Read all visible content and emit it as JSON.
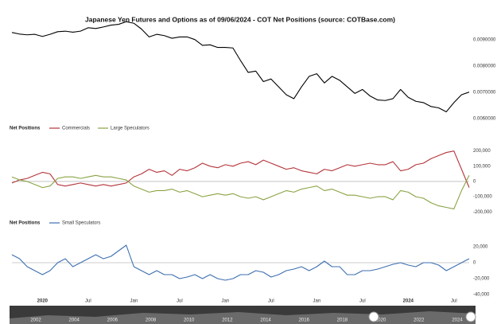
{
  "title": "Japanese Yen Futures and Options as of 09/06/2024 - COT Net Positions (source: COTBase.com)",
  "chart_data": [
    {
      "type": "line",
      "x": [
        "2019-09",
        "2019-10",
        "2019-11",
        "2019-12",
        "2020-01",
        "2020-02",
        "2020-03",
        "2020-04",
        "2020-05",
        "2020-06",
        "2020-07",
        "2020-08",
        "2020-09",
        "2020-10",
        "2020-11",
        "2020-12",
        "2021-01",
        "2021-02",
        "2021-03",
        "2021-04",
        "2021-05",
        "2021-06",
        "2021-07",
        "2021-08",
        "2021-09",
        "2021-10",
        "2021-11",
        "2021-12",
        "2022-01",
        "2022-02",
        "2022-03",
        "2022-04",
        "2022-05",
        "2022-06",
        "2022-07",
        "2022-08",
        "2022-09",
        "2022-10",
        "2022-11",
        "2022-12",
        "2023-01",
        "2023-02",
        "2023-03",
        "2023-04",
        "2023-05",
        "2023-06",
        "2023-07",
        "2023-08",
        "2023-09",
        "2023-10",
        "2023-11",
        "2023-12",
        "2024-01",
        "2024-02",
        "2024-03",
        "2024-04",
        "2024-05",
        "2024-06",
        "2024-07",
        "2024-08",
        "2024-09"
      ],
      "xlim": [
        "2019-09",
        "2024-09"
      ],
      "series": [
        {
          "color": "#000000",
          "values": [
            0.00927,
            0.00921,
            0.00918,
            0.0092,
            0.00912,
            0.0092,
            0.0093,
            0.00932,
            0.00928,
            0.00932,
            0.00945,
            0.00942,
            0.00948,
            0.00955,
            0.00958,
            0.00968,
            0.00962,
            0.0094,
            0.0091,
            0.0092,
            0.00915,
            0.00905,
            0.0091,
            0.0091,
            0.009,
            0.00878,
            0.0088,
            0.0087,
            0.0087,
            0.00868,
            0.0082,
            0.00775,
            0.0078,
            0.0074,
            0.0075,
            0.0072,
            0.0069,
            0.00675,
            0.0072,
            0.0076,
            0.0077,
            0.00735,
            0.0076,
            0.00745,
            0.0072,
            0.00695,
            0.0071,
            0.00685,
            0.0067,
            0.00668,
            0.00675,
            0.0071,
            0.0068,
            0.00665,
            0.0066,
            0.00645,
            0.0064,
            0.00625,
            0.0066,
            0.0069,
            0.007
          ]
        }
      ],
      "ylim": [
        0.0059,
        0.0099
      ],
      "yticks": [
        {
          "value": 0.006,
          "label": "0.0060000"
        },
        {
          "value": 0.007,
          "label": "0.0070000"
        },
        {
          "value": 0.008,
          "label": "0.0080000"
        },
        {
          "value": 0.009,
          "label": "0.0090000"
        }
      ]
    },
    {
      "type": "line",
      "legend_title": "Net Positions",
      "x": [
        "2019-09",
        "2019-10",
        "2019-11",
        "2019-12",
        "2020-01",
        "2020-02",
        "2020-03",
        "2020-04",
        "2020-05",
        "2020-06",
        "2020-07",
        "2020-08",
        "2020-09",
        "2020-10",
        "2020-11",
        "2020-12",
        "2021-01",
        "2021-02",
        "2021-03",
        "2021-04",
        "2021-05",
        "2021-06",
        "2021-07",
        "2021-08",
        "2021-09",
        "2021-10",
        "2021-11",
        "2021-12",
        "2022-01",
        "2022-02",
        "2022-03",
        "2022-04",
        "2022-05",
        "2022-06",
        "2022-07",
        "2022-08",
        "2022-09",
        "2022-10",
        "2022-11",
        "2022-12",
        "2023-01",
        "2023-02",
        "2023-03",
        "2023-04",
        "2023-05",
        "2023-06",
        "2023-07",
        "2023-08",
        "2023-09",
        "2023-10",
        "2023-11",
        "2023-12",
        "2024-01",
        "2024-02",
        "2024-03",
        "2024-04",
        "2024-05",
        "2024-06",
        "2024-07",
        "2024-08",
        "2024-09"
      ],
      "xlim": [
        "2019-09",
        "2024-09"
      ],
      "series": [
        {
          "name": "Commercials",
          "color": "#b5343a",
          "values": [
            -10000,
            10000,
            20000,
            40000,
            60000,
            50000,
            -20000,
            -30000,
            -20000,
            -10000,
            -20000,
            -30000,
            -20000,
            -30000,
            -20000,
            -10000,
            30000,
            50000,
            80000,
            60000,
            70000,
            40000,
            80000,
            70000,
            90000,
            120000,
            100000,
            90000,
            110000,
            100000,
            120000,
            130000,
            110000,
            140000,
            120000,
            100000,
            80000,
            90000,
            70000,
            60000,
            50000,
            80000,
            70000,
            90000,
            110000,
            100000,
            110000,
            120000,
            110000,
            110000,
            130000,
            70000,
            80000,
            110000,
            120000,
            150000,
            170000,
            190000,
            200000,
            80000,
            -40000
          ]
        },
        {
          "name": "Large Speculators",
          "color": "#8aa343",
          "values": [
            30000,
            10000,
            0,
            -20000,
            -40000,
            -30000,
            20000,
            30000,
            30000,
            20000,
            30000,
            40000,
            30000,
            30000,
            20000,
            10000,
            -30000,
            -50000,
            -70000,
            -60000,
            -60000,
            -50000,
            -70000,
            -60000,
            -80000,
            -100000,
            -90000,
            -80000,
            -90000,
            -80000,
            -100000,
            -110000,
            -100000,
            -120000,
            -100000,
            -80000,
            -60000,
            -70000,
            -50000,
            -40000,
            -30000,
            -60000,
            -50000,
            -70000,
            -90000,
            -90000,
            -100000,
            -110000,
            -100000,
            -100000,
            -120000,
            -60000,
            -70000,
            -100000,
            -110000,
            -140000,
            -160000,
            -170000,
            -180000,
            -60000,
            40000
          ]
        }
      ],
      "ylim": [
        -230000,
        240000
      ],
      "yticks": [
        {
          "value": -200000,
          "label": "-200,000"
        },
        {
          "value": -100000,
          "label": "-100,000"
        },
        0,
        {
          "value": 100000,
          "label": "100,000"
        },
        {
          "value": 200000,
          "label": "200,000"
        }
      ],
      "zero_line": true
    },
    {
      "type": "line",
      "legend_title": "Net Positions",
      "x": [
        "2019-09",
        "2019-10",
        "2019-11",
        "2019-12",
        "2020-01",
        "2020-02",
        "2020-03",
        "2020-04",
        "2020-05",
        "2020-06",
        "2020-07",
        "2020-08",
        "2020-09",
        "2020-10",
        "2020-11",
        "2020-12",
        "2021-01",
        "2021-02",
        "2021-03",
        "2021-04",
        "2021-05",
        "2021-06",
        "2021-07",
        "2021-08",
        "2021-09",
        "2021-10",
        "2021-11",
        "2021-12",
        "2022-01",
        "2022-02",
        "2022-03",
        "2022-04",
        "2022-05",
        "2022-06",
        "2022-07",
        "2022-08",
        "2022-09",
        "2022-10",
        "2022-11",
        "2022-12",
        "2023-01",
        "2023-02",
        "2023-03",
        "2023-04",
        "2023-05",
        "2023-06",
        "2023-07",
        "2023-08",
        "2023-09",
        "2023-10",
        "2023-11",
        "2023-12",
        "2024-01",
        "2024-02",
        "2024-03",
        "2024-04",
        "2024-05",
        "2024-06",
        "2024-07",
        "2024-08",
        "2024-09"
      ],
      "xlim": [
        "2019-09",
        "2024-09"
      ],
      "series": [
        {
          "name": "Small Speculators",
          "color": "#3d6fb0",
          "values": [
            10000,
            5000,
            -5000,
            -10000,
            -15000,
            -10000,
            0,
            5000,
            -5000,
            0,
            5000,
            10000,
            5000,
            8000,
            15000,
            22000,
            -5000,
            -10000,
            -15000,
            -10000,
            -15000,
            -15000,
            -20000,
            -18000,
            -15000,
            -20000,
            -15000,
            -20000,
            -22000,
            -20000,
            -15000,
            -15000,
            -10000,
            -12000,
            -18000,
            -15000,
            -10000,
            -8000,
            -5000,
            -10000,
            -5000,
            2000,
            -5000,
            -5000,
            -15000,
            -15000,
            -10000,
            -10000,
            -8000,
            -5000,
            -2000,
            0,
            -3000,
            -5000,
            0,
            0,
            -3000,
            -10000,
            -5000,
            0,
            5000
          ]
        }
      ],
      "ylim": [
        -42000,
        40000
      ],
      "yticks": [
        {
          "value": -40000,
          "label": "-40,000"
        },
        {
          "value": -20000,
          "label": "-20,000"
        },
        0,
        {
          "value": 20000,
          "label": "20,000"
        }
      ],
      "zero_line": true,
      "xticks": [
        {
          "value": "2020-01",
          "label": "2020"
        },
        {
          "value": "2020-07",
          "label": "Jul"
        },
        {
          "value": "2021-01",
          "label": "Jan"
        },
        {
          "value": "2021-07",
          "label": "Jul"
        },
        {
          "value": "2022-01",
          "label": "Jan"
        },
        {
          "value": "2022-07",
          "label": "Jul"
        },
        {
          "value": "2023-01",
          "label": "Jan"
        },
        {
          "value": "2023-07",
          "label": "Jul"
        },
        {
          "value": "2024-01",
          "label": "2024"
        },
        {
          "value": "2024-07",
          "label": "Jul"
        }
      ]
    }
  ],
  "navigator": {
    "labels": [
      "2002",
      "2004",
      "2006",
      "2008",
      "2010",
      "2012",
      "2014",
      "2016",
      "2018",
      "2020",
      "2022",
      "2024"
    ]
  }
}
